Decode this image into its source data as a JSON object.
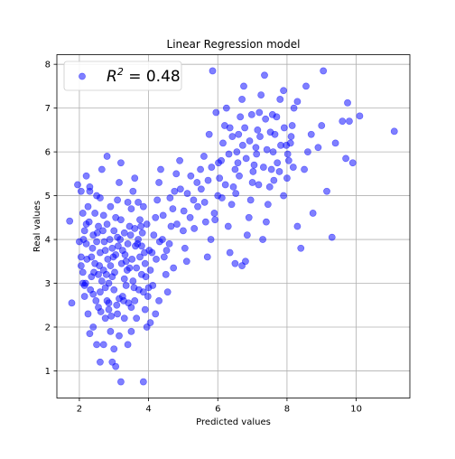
{
  "chart_data": {
    "type": "scatter",
    "title": "Linear Regression model",
    "xlabel": "Predicted values",
    "ylabel": "Real values",
    "xlim": [
      1.35,
      11.55
    ],
    "ylim": [
      0.38,
      8.22
    ],
    "xticks": [
      2,
      4,
      6,
      8,
      10
    ],
    "yticks": [
      1,
      2,
      3,
      4,
      5,
      6,
      7,
      8
    ],
    "grid": true,
    "legend": {
      "placement": "top-left",
      "label_base": "R",
      "label_sup": "2",
      "label_rest": " =  0.48"
    },
    "point_color": "#0000ff",
    "point_alpha": 0.5,
    "series": [
      {
        "points": [
          [
            1.72,
            4.42
          ],
          [
            1.78,
            2.55
          ],
          [
            1.95,
            5.25
          ],
          [
            2.05,
            5.1
          ],
          [
            2.1,
            4.6
          ],
          [
            2.15,
            4.2
          ],
          [
            2.2,
            3.9
          ],
          [
            2.05,
            3.4
          ],
          [
            2.1,
            3.0
          ],
          [
            2.15,
            2.7
          ],
          [
            2.25,
            2.3
          ],
          [
            2.3,
            1.85
          ],
          [
            2.35,
            3.6
          ],
          [
            2.4,
            4.1
          ],
          [
            2.45,
            4.6
          ],
          [
            2.5,
            5.0
          ],
          [
            2.55,
            3.2
          ],
          [
            2.6,
            2.8
          ],
          [
            2.4,
            2.0
          ],
          [
            2.5,
            1.6
          ],
          [
            2.6,
            1.2
          ],
          [
            2.7,
            1.6
          ],
          [
            2.75,
            2.2
          ],
          [
            2.8,
            2.6
          ],
          [
            2.85,
            3.0
          ],
          [
            2.9,
            3.4
          ],
          [
            2.95,
            3.8
          ],
          [
            3.0,
            4.2
          ],
          [
            3.05,
            4.5
          ],
          [
            3.1,
            4.9
          ],
          [
            3.15,
            5.3
          ],
          [
            2.65,
            5.6
          ],
          [
            2.8,
            5.9
          ],
          [
            3.2,
            5.75
          ],
          [
            2.2,
            5.45
          ],
          [
            2.3,
            5.1
          ],
          [
            2.55,
            4.3
          ],
          [
            2.6,
            3.7
          ],
          [
            2.7,
            3.3
          ],
          [
            2.75,
            2.9
          ],
          [
            2.85,
            2.4
          ],
          [
            2.9,
            1.9
          ],
          [
            3.0,
            1.5
          ],
          [
            3.05,
            1.1
          ],
          [
            3.2,
            0.75
          ],
          [
            2.95,
            1.2
          ],
          [
            3.25,
            2.7
          ],
          [
            3.3,
            3.1
          ],
          [
            3.35,
            3.5
          ],
          [
            3.4,
            3.9
          ],
          [
            3.45,
            4.3
          ],
          [
            3.5,
            4.7
          ],
          [
            3.55,
            5.1
          ],
          [
            3.6,
            5.4
          ],
          [
            3.7,
            4.0
          ],
          [
            3.75,
            3.6
          ],
          [
            3.8,
            3.2
          ],
          [
            3.85,
            2.8
          ],
          [
            3.9,
            2.4
          ],
          [
            3.95,
            2.0
          ],
          [
            3.65,
            2.2
          ],
          [
            3.5,
            1.9
          ],
          [
            3.4,
            1.6
          ],
          [
            3.6,
            2.6
          ],
          [
            3.3,
            2.2
          ],
          [
            3.15,
            1.8
          ],
          [
            3.1,
            2.3
          ],
          [
            4.0,
            2.9
          ],
          [
            4.05,
            3.3
          ],
          [
            4.1,
            3.7
          ],
          [
            4.15,
            4.1
          ],
          [
            4.2,
            4.5
          ],
          [
            4.25,
            4.9
          ],
          [
            4.3,
            5.3
          ],
          [
            4.35,
            5.6
          ],
          [
            4.4,
            4.0
          ],
          [
            4.45,
            3.6
          ],
          [
            4.5,
            3.2
          ],
          [
            4.55,
            2.8
          ],
          [
            4.3,
            2.6
          ],
          [
            4.2,
            2.3
          ],
          [
            4.05,
            2.1
          ],
          [
            3.85,
            0.75
          ],
          [
            4.6,
            3.9
          ],
          [
            4.65,
            4.3
          ],
          [
            4.7,
            4.7
          ],
          [
            4.75,
            5.1
          ],
          [
            4.8,
            5.5
          ],
          [
            4.9,
            5.8
          ],
          [
            5.0,
            4.2
          ],
          [
            5.05,
            3.8
          ],
          [
            5.1,
            3.5
          ],
          [
            5.2,
            4.5
          ],
          [
            5.3,
            4.9
          ],
          [
            5.4,
            5.3
          ],
          [
            5.5,
            5.6
          ],
          [
            5.6,
            5.9
          ],
          [
            5.65,
            4.4
          ],
          [
            5.7,
            3.6
          ],
          [
            5.8,
            4.0
          ],
          [
            5.9,
            4.6
          ],
          [
            6.0,
            5.0
          ],
          [
            6.05,
            5.4
          ],
          [
            6.1,
            5.8
          ],
          [
            6.15,
            6.2
          ],
          [
            6.2,
            6.6
          ],
          [
            6.25,
            7.0
          ],
          [
            5.95,
            6.9
          ],
          [
            5.75,
            6.4
          ],
          [
            5.85,
            7.85
          ],
          [
            6.3,
            4.3
          ],
          [
            6.35,
            3.7
          ],
          [
            6.4,
            4.8
          ],
          [
            6.45,
            5.2
          ],
          [
            6.5,
            5.6
          ],
          [
            6.55,
            6.0
          ],
          [
            6.6,
            6.4
          ],
          [
            6.65,
            6.8
          ],
          [
            6.7,
            7.2
          ],
          [
            6.75,
            7.5
          ],
          [
            6.5,
            3.45
          ],
          [
            6.7,
            3.4
          ],
          [
            6.8,
            3.5
          ],
          [
            6.85,
            4.1
          ],
          [
            6.9,
            4.5
          ],
          [
            6.95,
            4.9
          ],
          [
            7.0,
            5.3
          ],
          [
            7.05,
            5.7
          ],
          [
            7.1,
            6.1
          ],
          [
            7.15,
            6.5
          ],
          [
            7.2,
            6.9
          ],
          [
            7.25,
            7.3
          ],
          [
            7.3,
            4.0
          ],
          [
            7.4,
            4.4
          ],
          [
            7.45,
            4.8
          ],
          [
            7.5,
            5.2
          ],
          [
            7.55,
            5.6
          ],
          [
            7.6,
            6.0
          ],
          [
            7.65,
            6.4
          ],
          [
            7.7,
            6.8
          ],
          [
            7.35,
            7.75
          ],
          [
            7.8,
            7.2
          ],
          [
            7.9,
            5.0
          ],
          [
            8.0,
            5.4
          ],
          [
            8.05,
            5.8
          ],
          [
            8.1,
            6.2
          ],
          [
            8.15,
            6.6
          ],
          [
            8.2,
            7.0
          ],
          [
            8.3,
            4.3
          ],
          [
            8.4,
            3.8
          ],
          [
            8.5,
            5.6
          ],
          [
            8.6,
            6.0
          ],
          [
            8.7,
            6.4
          ],
          [
            8.75,
            4.6
          ],
          [
            8.9,
            6.1
          ],
          [
            9.0,
            6.6
          ],
          [
            9.05,
            7.85
          ],
          [
            9.15,
            5.1
          ],
          [
            9.3,
            4.05
          ],
          [
            9.4,
            6.2
          ],
          [
            9.6,
            6.7
          ],
          [
            9.7,
            5.85
          ],
          [
            9.8,
            6.7
          ],
          [
            9.9,
            5.75
          ],
          [
            10.1,
            6.82
          ],
          [
            11.1,
            6.47
          ],
          [
            9.75,
            7.12
          ],
          [
            8.3,
            7.15
          ],
          [
            7.9,
            7.4
          ],
          [
            8.55,
            7.5
          ],
          [
            2.0,
            3.95
          ],
          [
            2.05,
            3.6
          ],
          [
            2.1,
            3.25
          ],
          [
            2.15,
            2.95
          ],
          [
            2.2,
            4.35
          ],
          [
            2.25,
            4.75
          ],
          [
            2.3,
            5.2
          ],
          [
            2.35,
            3.15
          ],
          [
            2.4,
            2.75
          ],
          [
            2.45,
            3.45
          ],
          [
            2.5,
            3.95
          ],
          [
            2.55,
            2.45
          ],
          [
            2.6,
            4.95
          ],
          [
            2.65,
            3.05
          ],
          [
            2.7,
            4.55
          ],
          [
            2.75,
            3.75
          ],
          [
            2.8,
            4.35
          ],
          [
            2.85,
            2.55
          ],
          [
            2.9,
            4.75
          ],
          [
            2.95,
            3.15
          ],
          [
            3.0,
            2.85
          ],
          [
            3.05,
            3.65
          ],
          [
            3.1,
            4.05
          ],
          [
            3.15,
            2.65
          ],
          [
            3.2,
            4.45
          ],
          [
            3.25,
            3.75
          ],
          [
            3.3,
            4.15
          ],
          [
            3.35,
            2.95
          ],
          [
            3.4,
            4.85
          ],
          [
            3.45,
            3.35
          ],
          [
            3.5,
            2.45
          ],
          [
            3.55,
            3.05
          ],
          [
            3.6,
            4.25
          ],
          [
            3.65,
            3.35
          ],
          [
            3.7,
            4.85
          ],
          [
            3.75,
            4.45
          ],
          [
            3.8,
            3.85
          ],
          [
            3.85,
            4.75
          ],
          [
            3.9,
            3.45
          ],
          [
            3.95,
            4.35
          ],
          [
            2.22,
            3.55
          ],
          [
            2.32,
            2.85
          ],
          [
            2.42,
            3.25
          ],
          [
            2.52,
            4.15
          ],
          [
            2.62,
            2.35
          ],
          [
            2.72,
            3.95
          ],
          [
            2.82,
            3.55
          ],
          [
            2.92,
            2.25
          ],
          [
            3.02,
            3.25
          ],
          [
            3.12,
            3.85
          ],
          [
            3.22,
            3.45
          ],
          [
            3.32,
            3.65
          ],
          [
            3.42,
            2.55
          ],
          [
            3.52,
            3.55
          ],
          [
            3.62,
            3.85
          ],
          [
            3.72,
            2.85
          ],
          [
            3.82,
            4.15
          ],
          [
            3.92,
            3.15
          ],
          [
            4.02,
            3.75
          ],
          [
            4.12,
            2.95
          ],
          [
            2.12,
            4.0
          ],
          [
            2.18,
            3.0
          ],
          [
            2.28,
            4.4
          ],
          [
            2.38,
            3.8
          ],
          [
            2.48,
            2.6
          ],
          [
            2.58,
            3.4
          ],
          [
            2.68,
            4.2
          ],
          [
            2.78,
            3.2
          ],
          [
            2.88,
            4.0
          ],
          [
            2.98,
            3.6
          ],
          [
            3.08,
            2.5
          ],
          [
            3.18,
            4.0
          ],
          [
            3.28,
            2.6
          ],
          [
            3.38,
            3.3
          ],
          [
            3.48,
            4.1
          ],
          [
            3.58,
            2.9
          ],
          [
            3.68,
            3.9
          ],
          [
            3.78,
            4.3
          ],
          [
            3.88,
            3.7
          ],
          [
            3.98,
            2.7
          ],
          [
            4.22,
            3.55
          ],
          [
            4.32,
            3.95
          ],
          [
            4.42,
            4.55
          ],
          [
            4.52,
            3.75
          ],
          [
            4.62,
            4.95
          ],
          [
            4.72,
            3.35
          ],
          [
            4.82,
            4.35
          ],
          [
            4.92,
            5.15
          ],
          [
            5.02,
            4.65
          ],
          [
            5.12,
            5.05
          ],
          [
            5.22,
            5.45
          ],
          [
            5.32,
            4.25
          ],
          [
            5.42,
            4.75
          ],
          [
            5.52,
            5.15
          ],
          [
            5.62,
            4.85
          ],
          [
            5.72,
            5.35
          ],
          [
            5.82,
            5.65
          ],
          [
            5.92,
            4.45
          ],
          [
            6.02,
            5.75
          ],
          [
            6.12,
            4.95
          ],
          [
            6.22,
            5.25
          ],
          [
            6.32,
            5.95
          ],
          [
            6.42,
            6.35
          ],
          [
            6.52,
            5.05
          ],
          [
            6.62,
            5.45
          ],
          [
            6.72,
            6.15
          ],
          [
            6.82,
            5.85
          ],
          [
            6.92,
            6.25
          ],
          [
            7.02,
            5.55
          ],
          [
            7.12,
            5.95
          ],
          [
            7.22,
            6.35
          ],
          [
            7.32,
            5.65
          ],
          [
            7.42,
            6.05
          ],
          [
            7.52,
            6.45
          ],
          [
            7.62,
            5.35
          ],
          [
            7.72,
            5.75
          ],
          [
            7.82,
            6.15
          ],
          [
            7.92,
            6.55
          ],
          [
            8.02,
            5.95
          ],
          [
            8.12,
            6.35
          ],
          [
            6.35,
            6.55
          ],
          [
            6.58,
            5.75
          ],
          [
            6.78,
            6.55
          ],
          [
            6.98,
            6.85
          ],
          [
            7.18,
            5.25
          ],
          [
            7.38,
            6.75
          ],
          [
            7.58,
            6.85
          ],
          [
            7.78,
            5.55
          ],
          [
            7.98,
            6.15
          ],
          [
            8.18,
            5.65
          ]
        ]
      }
    ]
  }
}
